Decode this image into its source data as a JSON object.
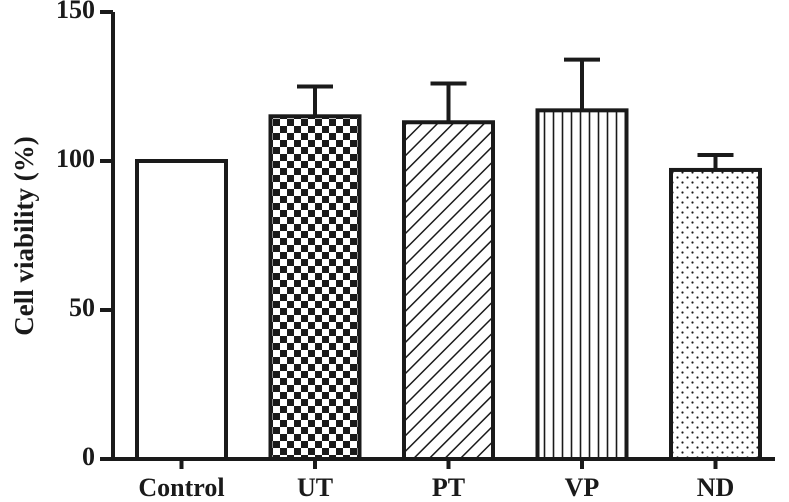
{
  "chart_data": {
    "type": "bar",
    "title": "",
    "xlabel": "",
    "ylabel": "Cell viability (%)",
    "ylim": [
      0,
      150
    ],
    "yticks": [
      0,
      50,
      100,
      150
    ],
    "categories": [
      "Control",
      "UT",
      "PT",
      "VP",
      "ND"
    ],
    "values": [
      100,
      115,
      113,
      117,
      97
    ],
    "errors": [
      0,
      10,
      13,
      17,
      5
    ],
    "patterns": [
      "none",
      "checkerboard",
      "diagonal-hatch",
      "vertical-lines",
      "dots"
    ],
    "colors": {
      "stroke": "#1a1a1a",
      "fill": "#ffffff"
    },
    "grid": false
  }
}
